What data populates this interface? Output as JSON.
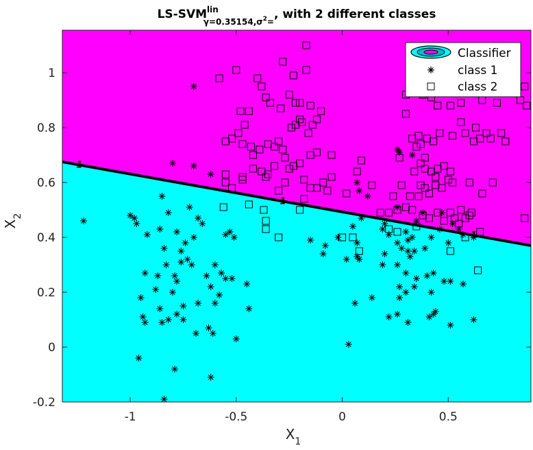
{
  "chart_data": {
    "type": "scatter",
    "title_main": "LS-SVM",
    "title_sup": "lin",
    "title_sub": "γ=0.35154,σ",
    "title_sub_sup": "2",
    "title_rest_sub": "=",
    "title_tail": ", with 2 different classes",
    "xlabel": "X",
    "xlabel_sub": "1",
    "ylabel": "X",
    "ylabel_sub": "2",
    "xlim": [
      -1.32,
      0.89
    ],
    "ylim": [
      -0.2,
      1.155
    ],
    "xticks": [
      -1,
      -0.5,
      0,
      0.5
    ],
    "xtick_labels": [
      "-1",
      "-0.5",
      "0",
      "0.5"
    ],
    "yticks": [
      -0.2,
      0,
      0.2,
      0.4,
      0.6,
      0.8,
      1
    ],
    "ytick_labels": [
      "-0.2",
      "0",
      "0.2",
      "0.4",
      "0.6",
      "0.8",
      "1"
    ],
    "grid": false,
    "legend_position": "top-right",
    "colors": {
      "class1_region": "#00ffff",
      "class2_region": "#ff00ff",
      "boundary": "#000000",
      "markers": "#000000"
    },
    "boundary": {
      "x": [
        -1.32,
        0.89
      ],
      "y": [
        0.675,
        0.37
      ],
      "contour_label": "1",
      "label_positions_x": [
        -1.24,
        -0.28,
        0.62
      ]
    },
    "legend": [
      "Classifier",
      "class 1",
      "class 2"
    ],
    "series": [
      {
        "name": "class 1",
        "marker": "asterisk",
        "points": [
          [
            -1.22,
            0.46
          ],
          [
            -1.0,
            0.48
          ],
          [
            -0.98,
            0.47
          ],
          [
            -0.97,
            0.45
          ],
          [
            -0.92,
            0.41
          ],
          [
            -0.86,
            0.43
          ],
          [
            -0.84,
            0.36
          ],
          [
            -0.85,
            0.55
          ],
          [
            -0.8,
            0.67
          ],
          [
            -0.82,
            0.49
          ],
          [
            -0.78,
            0.42
          ],
          [
            -0.72,
            0.51
          ],
          [
            -0.68,
            0.47
          ],
          [
            -0.66,
            0.45
          ],
          [
            -0.7,
            0.4
          ],
          [
            -0.74,
            0.38
          ],
          [
            -0.76,
            0.35
          ],
          [
            -0.83,
            0.3
          ],
          [
            -0.87,
            0.26
          ],
          [
            -0.93,
            0.27
          ],
          [
            -0.76,
            0.31
          ],
          [
            -0.79,
            0.26
          ],
          [
            -0.78,
            0.24
          ],
          [
            -0.8,
            0.2
          ],
          [
            -0.73,
            0.32
          ],
          [
            -0.71,
            0.3
          ],
          [
            -0.64,
            0.26
          ],
          [
            -0.62,
            0.22
          ],
          [
            -0.6,
            0.3
          ],
          [
            -0.57,
            0.27
          ],
          [
            -0.55,
            0.25
          ],
          [
            -0.52,
            0.25
          ],
          [
            -0.45,
            0.23
          ],
          [
            -0.44,
            0.14
          ],
          [
            -0.58,
            0.19
          ],
          [
            -0.6,
            0.16
          ],
          [
            -0.68,
            0.16
          ],
          [
            -0.75,
            0.15
          ],
          [
            -0.78,
            0.12
          ],
          [
            -0.82,
            0.1
          ],
          [
            -0.86,
            0.14
          ],
          [
            -0.88,
            0.21
          ],
          [
            -0.95,
            0.18
          ],
          [
            -0.94,
            0.11
          ],
          [
            -0.93,
            0.09
          ],
          [
            -0.85,
            0.09
          ],
          [
            -0.75,
            0.1
          ],
          [
            -0.69,
            0.05
          ],
          [
            -0.63,
            0.07
          ],
          [
            -0.61,
            0.05
          ],
          [
            -0.5,
            0.03
          ],
          [
            -0.96,
            -0.04
          ],
          [
            -0.79,
            -0.08
          ],
          [
            -0.62,
            -0.11
          ],
          [
            -0.84,
            -0.19
          ],
          [
            -0.7,
            0.95
          ],
          [
            -0.7,
            0.66
          ],
          [
            -0.62,
            0.63
          ],
          [
            -0.53,
            0.42
          ],
          [
            -0.55,
            0.41
          ],
          [
            -0.51,
            0.4
          ],
          [
            -0.15,
            0.39
          ],
          [
            -0.02,
            0.4
          ],
          [
            -0.08,
            0.37
          ],
          [
            -0.09,
            0.34
          ],
          [
            0.02,
            0.32
          ],
          [
            0.07,
            0.33
          ],
          [
            0.08,
            0.32
          ],
          [
            0.07,
            0.38
          ],
          [
            0.05,
            0.44
          ],
          [
            0.09,
            0.47
          ],
          [
            0.07,
            0.6
          ],
          [
            0.08,
            0.57
          ],
          [
            0.12,
            0.55
          ],
          [
            0.26,
            0.51
          ],
          [
            0.27,
            0.71
          ],
          [
            0.26,
            0.72
          ],
          [
            0.33,
            0.7
          ],
          [
            0.3,
            0.42
          ],
          [
            0.35,
            0.46
          ],
          [
            0.2,
            0.45
          ],
          [
            0.19,
            0.43
          ],
          [
            0.22,
            0.41
          ],
          [
            0.26,
            0.38
          ],
          [
            0.28,
            0.36
          ],
          [
            0.33,
            0.4
          ],
          [
            0.31,
            0.39
          ],
          [
            0.34,
            0.35
          ],
          [
            0.32,
            0.33
          ],
          [
            0.31,
            0.35
          ],
          [
            0.2,
            0.34
          ],
          [
            0.19,
            0.3
          ],
          [
            0.26,
            0.3
          ],
          [
            0.3,
            0.27
          ],
          [
            0.35,
            0.25
          ],
          [
            0.4,
            0.26
          ],
          [
            0.43,
            0.27
          ],
          [
            0.39,
            0.36
          ],
          [
            0.42,
            0.4
          ],
          [
            0.46,
            0.43
          ],
          [
            0.38,
            0.49
          ],
          [
            0.47,
            0.49
          ],
          [
            0.52,
            0.45
          ],
          [
            0.55,
            0.43
          ],
          [
            0.57,
            0.41
          ],
          [
            0.62,
            0.4
          ],
          [
            0.5,
            0.38
          ],
          [
            0.48,
            0.24
          ],
          [
            0.51,
            0.24
          ],
          [
            0.57,
            0.23
          ],
          [
            0.42,
            0.2
          ],
          [
            0.44,
            0.13
          ],
          [
            0.43,
            0.12
          ],
          [
            0.41,
            0.11
          ],
          [
            0.51,
            0.08
          ],
          [
            0.31,
            0.09
          ],
          [
            0.26,
            0.12
          ],
          [
            0.27,
            0.18
          ],
          [
            0.3,
            0.2
          ],
          [
            0.27,
            0.22
          ],
          [
            0.34,
            0.22
          ],
          [
            0.22,
            0.11
          ],
          [
            0.14,
            0.18
          ],
          [
            0.06,
            0.16
          ],
          [
            0.03,
            0.01
          ],
          [
            0.62,
            0.1
          ]
        ]
      },
      {
        "name": "class 2",
        "marker": "square",
        "points": [
          [
            -0.58,
            0.98
          ],
          [
            -0.5,
            1.01
          ],
          [
            -0.28,
            1.04
          ],
          [
            -0.17,
            1.1
          ],
          [
            -0.17,
            1.01
          ],
          [
            -0.23,
            0.99
          ],
          [
            -0.4,
            0.98
          ],
          [
            -0.38,
            0.95
          ],
          [
            -0.36,
            0.91
          ],
          [
            -0.34,
            0.89
          ],
          [
            -0.25,
            0.92
          ],
          [
            -0.22,
            0.89
          ],
          [
            -0.2,
            0.89
          ],
          [
            -0.15,
            0.88
          ],
          [
            -0.1,
            0.86
          ],
          [
            -0.2,
            0.83
          ],
          [
            -0.19,
            0.82
          ],
          [
            -0.12,
            0.83
          ],
          [
            -0.14,
            0.81
          ],
          [
            -0.16,
            0.78
          ],
          [
            -0.22,
            0.81
          ],
          [
            -0.24,
            0.8
          ],
          [
            -0.29,
            0.87
          ],
          [
            -0.44,
            0.86
          ],
          [
            -0.48,
            0.86
          ],
          [
            -0.46,
            0.81
          ],
          [
            -0.49,
            0.78
          ],
          [
            -0.55,
            0.75
          ],
          [
            -0.52,
            0.76
          ],
          [
            -0.47,
            0.74
          ],
          [
            -0.43,
            0.73
          ],
          [
            -0.42,
            0.7
          ],
          [
            -0.39,
            0.72
          ],
          [
            -0.35,
            0.74
          ],
          [
            -0.3,
            0.75
          ],
          [
            -0.32,
            0.73
          ],
          [
            -0.28,
            0.72
          ],
          [
            -0.27,
            0.69
          ],
          [
            -0.2,
            0.67
          ],
          [
            -0.15,
            0.7
          ],
          [
            -0.12,
            0.71
          ],
          [
            -0.05,
            0.7
          ],
          [
            -0.23,
            0.66
          ],
          [
            -0.25,
            0.65
          ],
          [
            -0.32,
            0.66
          ],
          [
            -0.35,
            0.63
          ],
          [
            -0.38,
            0.64
          ],
          [
            -0.42,
            0.65
          ],
          [
            -0.47,
            0.61
          ],
          [
            -0.55,
            0.63
          ],
          [
            -0.55,
            0.6
          ],
          [
            -0.52,
            0.58
          ],
          [
            -0.47,
            0.62
          ],
          [
            -0.36,
            0.62
          ],
          [
            -0.3,
            0.57
          ],
          [
            -0.27,
            0.6
          ],
          [
            -0.18,
            0.61
          ],
          [
            -0.15,
            0.58
          ],
          [
            -0.12,
            0.58
          ],
          [
            -0.09,
            0.6
          ],
          [
            -0.07,
            0.57
          ],
          [
            -0.05,
            0.62
          ],
          [
            0.02,
            0.56
          ],
          [
            0.07,
            0.64
          ],
          [
            0.09,
            0.68
          ],
          [
            0.14,
            0.59
          ],
          [
            0.18,
            0.49
          ],
          [
            0.22,
            0.49
          ],
          [
            -0.18,
            0.54
          ],
          [
            -0.2,
            0.5
          ],
          [
            -0.56,
            0.51
          ],
          [
            -0.44,
            0.52
          ],
          [
            -0.36,
            0.46
          ],
          [
            -0.36,
            0.43
          ],
          [
            -0.37,
            0.5
          ],
          [
            -0.3,
            0.4
          ],
          [
            0.0,
            0.4
          ],
          [
            0.08,
            0.35
          ],
          [
            0.05,
            0.4
          ],
          [
            0.26,
            0.5
          ],
          [
            0.3,
            0.85
          ],
          [
            0.3,
            0.92
          ],
          [
            0.38,
            0.92
          ],
          [
            0.42,
            0.91
          ],
          [
            0.45,
            0.88
          ],
          [
            0.51,
            0.88
          ],
          [
            0.56,
            0.89
          ],
          [
            0.58,
            0.99
          ],
          [
            0.62,
            0.95
          ],
          [
            0.69,
            0.94
          ],
          [
            0.71,
            0.98
          ],
          [
            0.86,
            0.95
          ],
          [
            0.84,
            0.9
          ],
          [
            0.87,
            0.88
          ],
          [
            0.73,
            0.89
          ],
          [
            0.66,
            0.9
          ],
          [
            0.56,
            0.82
          ],
          [
            0.63,
            0.8
          ],
          [
            0.65,
            0.76
          ],
          [
            0.75,
            0.78
          ],
          [
            0.68,
            0.78
          ],
          [
            0.77,
            0.75
          ],
          [
            0.7,
            0.76
          ],
          [
            0.62,
            0.75
          ],
          [
            0.58,
            0.78
          ],
          [
            0.52,
            0.77
          ],
          [
            0.46,
            0.78
          ],
          [
            0.43,
            0.75
          ],
          [
            0.4,
            0.76
          ],
          [
            0.37,
            0.74
          ],
          [
            0.36,
            0.77
          ],
          [
            0.33,
            0.76
          ],
          [
            0.35,
            0.73
          ],
          [
            0.39,
            0.69
          ],
          [
            0.37,
            0.67
          ],
          [
            0.34,
            0.64
          ],
          [
            0.39,
            0.65
          ],
          [
            0.42,
            0.64
          ],
          [
            0.44,
            0.62
          ],
          [
            0.45,
            0.65
          ],
          [
            0.48,
            0.66
          ],
          [
            0.51,
            0.64
          ],
          [
            0.5,
            0.61
          ],
          [
            0.52,
            0.6
          ],
          [
            0.47,
            0.58
          ],
          [
            0.44,
            0.59
          ],
          [
            0.39,
            0.58
          ],
          [
            0.41,
            0.56
          ],
          [
            0.36,
            0.55
          ],
          [
            0.32,
            0.55
          ],
          [
            0.3,
            0.51
          ],
          [
            0.33,
            0.5
          ],
          [
            0.38,
            0.48
          ],
          [
            0.35,
            0.44
          ],
          [
            0.41,
            0.47
          ],
          [
            0.45,
            0.49
          ],
          [
            0.48,
            0.46
          ],
          [
            0.51,
            0.49
          ],
          [
            0.56,
            0.5
          ],
          [
            0.6,
            0.48
          ],
          [
            0.58,
            0.47
          ],
          [
            0.61,
            0.49
          ],
          [
            0.53,
            0.47
          ],
          [
            0.55,
            0.45
          ],
          [
            0.51,
            0.35
          ],
          [
            0.64,
            0.28
          ],
          [
            0.86,
            0.47
          ],
          [
            0.65,
            0.42
          ],
          [
            0.58,
            0.4
          ],
          [
            0.6,
            0.6
          ],
          [
            0.66,
            0.56
          ],
          [
            0.71,
            0.6
          ],
          [
            0.27,
            0.69
          ],
          [
            0.28,
            0.59
          ],
          [
            0.24,
            0.55
          ],
          [
            0.37,
            0.59
          ],
          [
            0.22,
            0.43
          ],
          [
            0.26,
            0.42
          ]
        ]
      }
    ]
  }
}
